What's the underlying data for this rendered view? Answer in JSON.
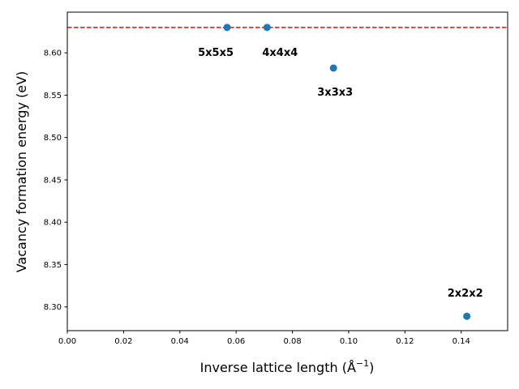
{
  "chart_data": {
    "type": "scatter",
    "title": "",
    "xlabel": "Inverse lattice length (Å",
    "xlabel_sup": "−1",
    "xlabel_close": ")",
    "ylabel": "Vacancy formation energy (eV)",
    "xlim": [
      0.0,
      0.1565
    ],
    "ylim": [
      8.272,
      8.648
    ],
    "grid": false,
    "x_ticks": [
      "0.00",
      "0.02",
      "0.04",
      "0.06",
      "0.08",
      "0.10",
      "0.12",
      "0.14"
    ],
    "x_tick_values": [
      0,
      0.02,
      0.04,
      0.06,
      0.08,
      0.1,
      0.12,
      0.14
    ],
    "y_ticks": [
      "8.30",
      "8.35",
      "8.40",
      "8.45",
      "8.50",
      "8.55",
      "8.60"
    ],
    "y_tick_values": [
      8.3,
      8.35,
      8.4,
      8.45,
      8.5,
      8.55,
      8.6
    ],
    "points": [
      {
        "label": "5x5x5",
        "x": 0.0568,
        "y": 8.63
      },
      {
        "label": "4x4x4",
        "x": 0.071,
        "y": 8.63
      },
      {
        "label": "3x3x3",
        "x": 0.0946,
        "y": 8.582
      },
      {
        "label": "2x2x2",
        "x": 0.142,
        "y": 8.289
      }
    ],
    "reference_line": {
      "y": 8.63,
      "style": "dashed",
      "color": "#ff0000"
    },
    "point_color": "#1f77b4"
  }
}
